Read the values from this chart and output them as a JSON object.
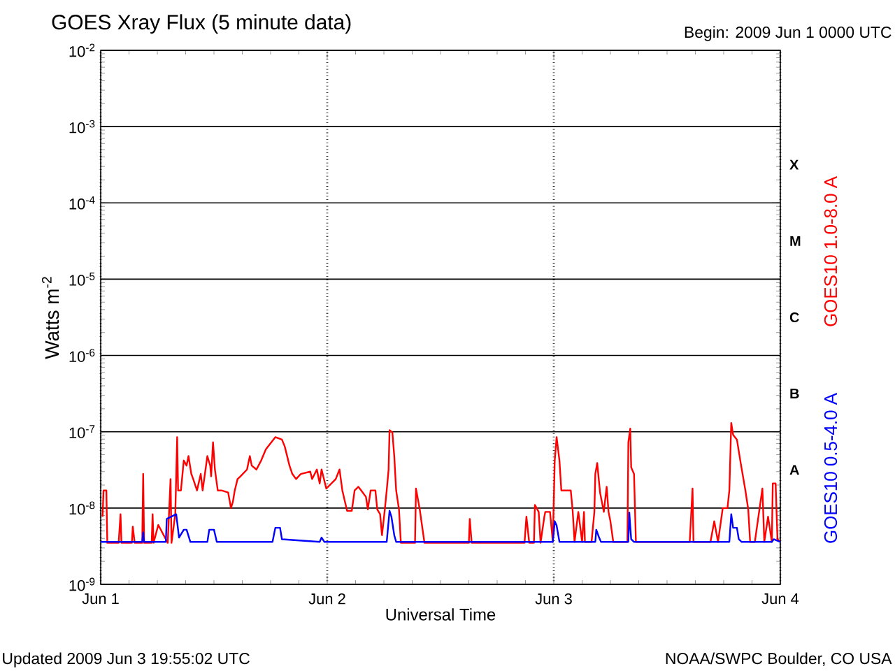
{
  "chart_data": {
    "type": "line",
    "title": "GOES Xray Flux (5 minute data)",
    "xlabel": "Universal Time",
    "ylabel": "Watts m$^{-2}$",
    "log": "y",
    "grid": true,
    "xlim": [
      "2009-06-01T00:00",
      "2009-06-04T00:00"
    ],
    "xticks": [
      {
        "value": "2009-06-01T00:00",
        "label": "Jun 1"
      },
      {
        "value": "2009-06-02T00:00",
        "label": "Jun 2"
      },
      {
        "value": "2009-06-03T00:00",
        "label": "Jun 3"
      },
      {
        "value": "2009-06-04T00:00",
        "label": "Jun 4"
      }
    ],
    "ylim": [
      1e-09,
      0.01
    ],
    "yticks": [
      {
        "value": 1e-09,
        "label": "10$^{-9}$"
      },
      {
        "value": 1e-08,
        "label": "10$^{-8}$"
      },
      {
        "value": 1e-07,
        "label": "10$^{-7}$"
      },
      {
        "value": 1e-06,
        "label": "10$^{-6}$"
      },
      {
        "value": 1e-05,
        "label": "10$^{-5}$"
      },
      {
        "value": 0.0001,
        "label": "10$^{-4}$"
      },
      {
        "value": 0.001,
        "label": "10$^{-3}$"
      },
      {
        "value": 0.01,
        "label": "10$^{-2}$"
      }
    ],
    "series": [
      {
        "name": "GOES10 1.0-8.0 A",
        "color": "#ff0000",
        "x": [
          "2009-06-01T00:12",
          "2009-06-01T00:18",
          "2009-06-01T00:36",
          "2009-06-01T00:42",
          "2009-06-01T01:54",
          "2009-06-01T02:06",
          "2009-06-01T02:12",
          "2009-06-01T03:18",
          "2009-06-01T03:24",
          "2009-06-01T03:36",
          "2009-06-01T04:24",
          "2009-06-01T04:30",
          "2009-06-01T04:36",
          "2009-06-01T05:24",
          "2009-06-01T05:30",
          "2009-06-01T05:36",
          "2009-06-01T06:06",
          "2009-06-01T07:06",
          "2009-06-01T07:24",
          "2009-06-01T07:30",
          "2009-06-01T07:54",
          "2009-06-01T08:06",
          "2009-06-01T08:12",
          "2009-06-01T08:30",
          "2009-06-01T08:48",
          "2009-06-01T09:06",
          "2009-06-01T09:18",
          "2009-06-01T09:36",
          "2009-06-01T09:48",
          "2009-06-01T10:12",
          "2009-06-01T10:36",
          "2009-06-01T10:48",
          "2009-06-01T11:18",
          "2009-06-01T11:36",
          "2009-06-01T11:42",
          "2009-06-01T11:54",
          "2009-06-01T12:06",
          "2009-06-01T12:24",
          "2009-06-01T12:48",
          "2009-06-01T13:30",
          "2009-06-01T13:48",
          "2009-06-01T14:00",
          "2009-06-01T14:12",
          "2009-06-01T14:30",
          "2009-06-01T14:48",
          "2009-06-01T15:30",
          "2009-06-01T15:48",
          "2009-06-01T16:00",
          "2009-06-01T16:30",
          "2009-06-01T17:00",
          "2009-06-01T17:30",
          "2009-06-01T18:30",
          "2009-06-01T19:12",
          "2009-06-01T19:30",
          "2009-06-01T20:00",
          "2009-06-01T20:18",
          "2009-06-01T20:42",
          "2009-06-01T21:12",
          "2009-06-01T22:12",
          "2009-06-01T22:24",
          "2009-06-01T22:54",
          "2009-06-01T23:12",
          "2009-06-01T23:24",
          "2009-06-01T23:54",
          "2009-06-02T00:54",
          "2009-06-02T01:18",
          "2009-06-02T01:36",
          "2009-06-02T02:06",
          "2009-06-02T02:36",
          "2009-06-02T02:54",
          "2009-06-02T03:18",
          "2009-06-02T03:36",
          "2009-06-02T04:06",
          "2009-06-02T04:18",
          "2009-06-02T04:36",
          "2009-06-02T05:06",
          "2009-06-02T05:18",
          "2009-06-02T05:36",
          "2009-06-02T05:48",
          "2009-06-02T06:06",
          "2009-06-02T06:18",
          "2009-06-02T06:30",
          "2009-06-02T06:36",
          "2009-06-02T06:54",
          "2009-06-02T07:06",
          "2009-06-02T07:18",
          "2009-06-02T07:36",
          "2009-06-02T07:48",
          "2009-06-02T09:18",
          "2009-06-02T09:24",
          "2009-06-02T09:48",
          "2009-06-02T10:18",
          "2009-06-02T15:00",
          "2009-06-02T15:06",
          "2009-06-02T15:18",
          "2009-06-02T20:54",
          "2009-06-02T21:06",
          "2009-06-02T21:24",
          "2009-06-02T21:54",
          "2009-06-02T22:00",
          "2009-06-02T22:24",
          "2009-06-02T22:36",
          "2009-06-02T23:00",
          "2009-06-02T23:06",
          "2009-06-02T23:36",
          "2009-06-02T23:54",
          "2009-06-03T00:06",
          "2009-06-03T00:18",
          "2009-06-03T00:36",
          "2009-06-03T00:48",
          "2009-06-03T01:48",
          "2009-06-03T02:00",
          "2009-06-03T02:12",
          "2009-06-03T02:36",
          "2009-06-03T03:00",
          "2009-06-03T03:12",
          "2009-06-03T03:18",
          "2009-06-03T04:00",
          "2009-06-03T04:18",
          "2009-06-03T04:24",
          "2009-06-03T04:36",
          "2009-06-03T04:54",
          "2009-06-03T05:18",
          "2009-06-03T05:36",
          "2009-06-03T05:48",
          "2009-06-03T06:00",
          "2009-06-03T06:18",
          "2009-06-03T07:48",
          "2009-06-03T07:54",
          "2009-06-03T08:06",
          "2009-06-03T08:12",
          "2009-06-03T08:30",
          "2009-06-03T08:42",
          "2009-06-03T14:24",
          "2009-06-03T14:42",
          "2009-06-03T14:48",
          "2009-06-03T16:36",
          "2009-06-03T17:00",
          "2009-06-03T17:24",
          "2009-06-03T17:54",
          "2009-06-03T18:24",
          "2009-06-03T18:36",
          "2009-06-03T18:48",
          "2009-06-03T19:00",
          "2009-06-03T19:24",
          "2009-06-03T19:48",
          "2009-06-03T20:18",
          "2009-06-03T20:36",
          "2009-06-03T20:48",
          "2009-06-03T21:18",
          "2009-06-03T22:06",
          "2009-06-03T22:18",
          "2009-06-03T22:42",
          "2009-06-03T23:06",
          "2009-06-03T23:12",
          "2009-06-03T23:30",
          "2009-06-03T23:42",
          "2009-06-04T00:00"
        ],
        "values": [
          7.7e-09,
          1.7e-08,
          1.7e-08,
          3.5e-09,
          3.5e-09,
          8.3e-09,
          3.5e-09,
          3.5e-09,
          5.7e-09,
          3.5e-09,
          3.5e-09,
          2.8e-08,
          3.5e-09,
          3.5e-09,
          8.3e-09,
          3.5e-09,
          6e-09,
          3.5e-09,
          2.4e-08,
          3.5e-09,
          8.3e-09,
          8.5e-08,
          1.7e-08,
          1.7e-08,
          4.2e-08,
          3.6e-08,
          4.8e-08,
          2.8e-08,
          2.4e-08,
          1.7e-08,
          2.8e-08,
          1.7e-08,
          4.8e-08,
          3.6e-08,
          2.6e-08,
          7.3e-08,
          3.2e-08,
          1.7e-08,
          1.7e-08,
          1.6e-08,
          1e-08,
          1.2e-08,
          1.7e-08,
          2.4e-08,
          2.6e-08,
          3.2e-08,
          4.8e-08,
          3.6e-08,
          3.2e-08,
          4.2e-08,
          5.9e-08,
          8.5e-08,
          7.9e-08,
          6.4e-08,
          3.6e-08,
          2.8e-08,
          2.4e-08,
          2.8e-08,
          3e-08,
          2.4e-08,
          3.2e-08,
          2.1e-08,
          3.2e-08,
          1.8e-08,
          2.4e-08,
          3.2e-08,
          1.7e-08,
          9.2e-09,
          9.2e-09,
          1.7e-08,
          1.9e-08,
          1.7e-08,
          1.4e-08,
          9.6e-09,
          1.7e-08,
          1.7e-08,
          9.6e-09,
          8.3e-09,
          4.4e-09,
          9.6e-09,
          1.7e-08,
          3.2e-08,
          1.05e-07,
          9.8e-08,
          4.8e-08,
          1.7e-08,
          9.6e-09,
          3.5e-09,
          3.5e-09,
          1.8e-08,
          9.6e-09,
          3.5e-09,
          3.5e-09,
          7.2e-09,
          3.5e-09,
          3.5e-09,
          7.7e-09,
          3.5e-09,
          3.5e-09,
          1.1e-08,
          8.9e-09,
          3.5e-09,
          7.7e-09,
          8.9e-09,
          8.9e-09,
          3.6e-09,
          4.2e-08,
          8.5e-08,
          4.2e-08,
          1.7e-08,
          1.7e-08,
          9.2e-09,
          3.6e-09,
          8.9e-09,
          3.6e-09,
          8.9e-09,
          3.6e-09,
          3.6e-09,
          8.9e-09,
          2.8e-08,
          3.9e-08,
          1.6e-08,
          8.9e-09,
          1.9e-08,
          8.9e-09,
          6.7e-09,
          3.6e-09,
          3.6e-09,
          7.3e-08,
          1.1e-07,
          3.4e-08,
          2.8e-08,
          3.6e-09,
          3.6e-09,
          1.8e-08,
          3.6e-09,
          3.6e-09,
          6.7e-09,
          3.6e-09,
          1e-08,
          1e-08,
          1.7e-08,
          1.3e-07,
          9.1e-08,
          7.9e-08,
          3.9e-08,
          1.7e-08,
          9.6e-09,
          3.6e-09,
          3.6e-09,
          1.8e-08,
          3.6e-09,
          7.7e-09,
          3.6e-09,
          2.1e-08,
          2.1e-08,
          3.9e-09,
          3.6e-09
        ]
      },
      {
        "name": "GOES10 0.5-4.0 A",
        "color": "#0000ff",
        "x": [
          "2009-06-01T00:00",
          "2009-06-01T04:24",
          "2009-06-01T04:30",
          "2009-06-01T04:36",
          "2009-06-01T06:54",
          "2009-06-01T07:00",
          "2009-06-01T08:00",
          "2009-06-01T08:18",
          "2009-06-01T08:48",
          "2009-06-01T09:06",
          "2009-06-01T09:30",
          "2009-06-01T11:18",
          "2009-06-01T11:30",
          "2009-06-01T12:00",
          "2009-06-01T12:18",
          "2009-06-01T18:12",
          "2009-06-01T18:30",
          "2009-06-01T19:00",
          "2009-06-01T19:12",
          "2009-06-01T23:12",
          "2009-06-01T23:24",
          "2009-06-01T23:42",
          "2009-06-02T06:18",
          "2009-06-02T06:36",
          "2009-06-02T06:48",
          "2009-06-02T07:06",
          "2009-06-02T07:18",
          "2009-06-02T23:54",
          "2009-06-03T00:06",
          "2009-06-03T00:18",
          "2009-06-03T00:36",
          "2009-06-03T04:24",
          "2009-06-03T04:30",
          "2009-06-03T04:48",
          "2009-06-03T05:00",
          "2009-06-03T07:54",
          "2009-06-03T08:00",
          "2009-06-03T08:12",
          "2009-06-03T08:30",
          "2009-06-03T18:36",
          "2009-06-03T18:48",
          "2009-06-03T19:00",
          "2009-06-03T19:24",
          "2009-06-03T19:36",
          "2009-06-03T19:54",
          "2009-06-03T23:06",
          "2009-06-03T23:18",
          "2009-06-04T00:00"
        ],
        "values": [
          3.6e-09,
          3.6e-09,
          4.8e-09,
          3.6e-09,
          3.6e-09,
          7.2e-09,
          8.3e-09,
          4.1e-09,
          5.2e-09,
          5.2e-09,
          3.6e-09,
          3.6e-09,
          5.2e-09,
          5.2e-09,
          3.6e-09,
          3.6e-09,
          5.5e-09,
          5.5e-09,
          3.9e-09,
          3.6e-09,
          4.1e-09,
          3.6e-09,
          3.6e-09,
          9.2e-09,
          7.7e-09,
          4.4e-09,
          3.6e-09,
          3.6e-09,
          6.7e-09,
          5.9e-09,
          3.6e-09,
          3.6e-09,
          5.2e-09,
          4.1e-09,
          3.6e-09,
          3.6e-09,
          8.7e-09,
          3.9e-09,
          3.6e-09,
          3.6e-09,
          8.3e-09,
          5.5e-09,
          5.5e-09,
          3.9e-09,
          3.6e-09,
          3.6e-09,
          3.9e-09,
          3.6e-09
        ]
      }
    ],
    "annotations": [
      "Begin:  2009 Jun 1 0000 UTC",
      "Updated 2009 Jun  3 19:55:02 UTC",
      "NOAA/SWPC Boulder, CO USA",
      "X",
      "M",
      "C",
      "B",
      "A"
    ]
  }
}
